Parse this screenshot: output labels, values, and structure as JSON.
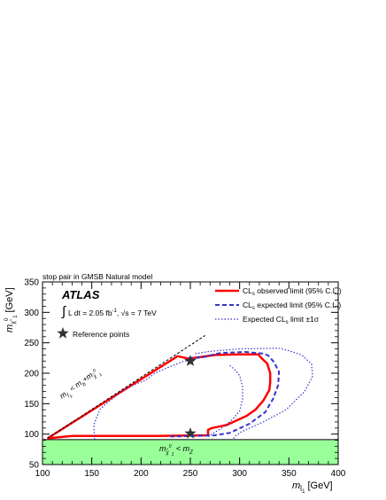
{
  "chart_data": {
    "type": "line",
    "title": "stop pair in GMSB Natural model",
    "xlabel_main": "m",
    "xlabel_sub": "t̃",
    "xlabel_sub2": "1",
    "xlabel_unit": "[GeV]",
    "ylabel_main": "m",
    "ylabel_sub": "χ̃",
    "ylabel_sup": "0",
    "ylabel_sub2": "1",
    "ylabel_unit": "[GeV]",
    "xlim": [
      100,
      400
    ],
    "ylim": [
      50,
      350
    ],
    "xticks": [
      100,
      150,
      200,
      250,
      300,
      350,
      400
    ],
    "yticks": [
      50,
      100,
      150,
      200,
      250,
      300,
      350
    ],
    "atlas_label": "ATLAS",
    "lumi_integral": "∫",
    "lumi_text": "L dt = 2.05 fb",
    "lumi_sup": "-1",
    "lumi_sqrt": ", √s = 7 TeV",
    "reference_label": "Reference points",
    "excluded_region_label": "m",
    "excluded_region_sub": "χ̃",
    "excluded_region_sup": "0",
    "excluded_region_sub2": "1",
    "excluded_region_rhs": " < m",
    "excluded_region_rhs_sub": "Z",
    "kinematic_label": "m",
    "kinematic_sub": "t̃",
    "kinematic_sub2": "1",
    "kinematic_rhs": " < m",
    "kinematic_rhs_sub": "b",
    "kinematic_plus": "+m",
    "kinematic_plus_sub": "χ̃",
    "kinematic_plus_sup": "0",
    "kinematic_plus_sub2": "1",
    "excluded_color": "#99ff99",
    "legend": [
      {
        "name": "CL",
        "sub": "s",
        "rest": " observed limit (95% C.L.)",
        "color": "#ff0000",
        "style": "solid"
      },
      {
        "name": "CL",
        "sub": "s",
        "rest": " expected limit (95% C.L.)",
        "color": "#3333cc",
        "style": "dashed"
      },
      {
        "name": "Expected CL",
        "sub": "s",
        "rest": " limit ±1σ",
        "color": "#3333cc",
        "style": "dotted"
      }
    ],
    "kinematic_line": [
      [
        105,
        93
      ],
      [
        265,
        262
      ]
    ],
    "series": [
      {
        "name": "observed",
        "color": "#ff0000",
        "style": "solid",
        "width": 2.5,
        "points": [
          [
            105,
            93
          ],
          [
            237,
            228
          ],
          [
            248,
            224
          ],
          [
            258,
            226
          ],
          [
            275,
            230
          ],
          [
            300,
            231
          ],
          [
            319,
            231
          ],
          [
            322,
            225
          ],
          [
            328,
            216
          ],
          [
            331,
            200
          ],
          [
            331,
            185
          ],
          [
            330,
            172
          ],
          [
            324,
            155
          ],
          [
            316,
            140
          ],
          [
            307,
            130
          ],
          [
            287,
            115
          ],
          [
            272,
            110
          ],
          [
            268,
            107
          ],
          [
            268,
            98
          ],
          [
            215,
            97
          ],
          [
            130,
            97
          ],
          [
            105,
            93
          ]
        ]
      },
      {
        "name": "expected",
        "color": "#3333cc",
        "style": "dashed",
        "width": 2,
        "points": [
          [
            248,
            225
          ],
          [
            262,
            226
          ],
          [
            280,
            233
          ],
          [
            306,
            235
          ],
          [
            325,
            232
          ],
          [
            329,
            229
          ],
          [
            335,
            218
          ],
          [
            340,
            202
          ],
          [
            339,
            180
          ],
          [
            334,
            158
          ],
          [
            326,
            136
          ],
          [
            310,
            117
          ],
          [
            290,
            102
          ],
          [
            275,
            98
          ],
          [
            255,
            97
          ],
          [
            230,
            96
          ]
        ]
      },
      {
        "name": "plus_sigma",
        "color": "#3333cc",
        "style": "dotted",
        "width": 1.2,
        "points": [
          [
            255,
            232
          ],
          [
            270,
            236
          ],
          [
            300,
            240
          ],
          [
            340,
            241
          ],
          [
            350,
            237
          ],
          [
            363,
            230
          ],
          [
            373,
            215
          ],
          [
            374,
            195
          ],
          [
            366,
            170
          ],
          [
            347,
            140
          ],
          [
            324,
            120
          ],
          [
            302,
            104
          ],
          [
            295,
            96
          ],
          [
            293,
            90
          ]
        ]
      },
      {
        "name": "minus_sigma",
        "color": "#3333cc",
        "style": "dotted",
        "width": 1.2,
        "points": [
          [
            153,
            91
          ],
          [
            152,
            115
          ],
          [
            158,
            140
          ],
          [
            166,
            152
          ],
          [
            180,
            170
          ],
          [
            190,
            179
          ],
          [
            205,
            189
          ],
          [
            214,
            200
          ],
          [
            225,
            208
          ],
          [
            242,
            219
          ],
          [
            250,
            222
          ]
        ]
      },
      {
        "name": "minus_sigma_lower",
        "color": "#3333cc",
        "style": "dotted",
        "width": 1.2,
        "points": [
          [
            268,
            96
          ],
          [
            282,
            110
          ],
          [
            292,
            123
          ],
          [
            300,
            138
          ],
          [
            303,
            158
          ],
          [
            303,
            178
          ],
          [
            300,
            196
          ],
          [
            295,
            206
          ],
          [
            290,
            213
          ]
        ]
      }
    ],
    "reference_points": [
      [
        250,
        220
      ],
      [
        250,
        101
      ]
    ]
  }
}
